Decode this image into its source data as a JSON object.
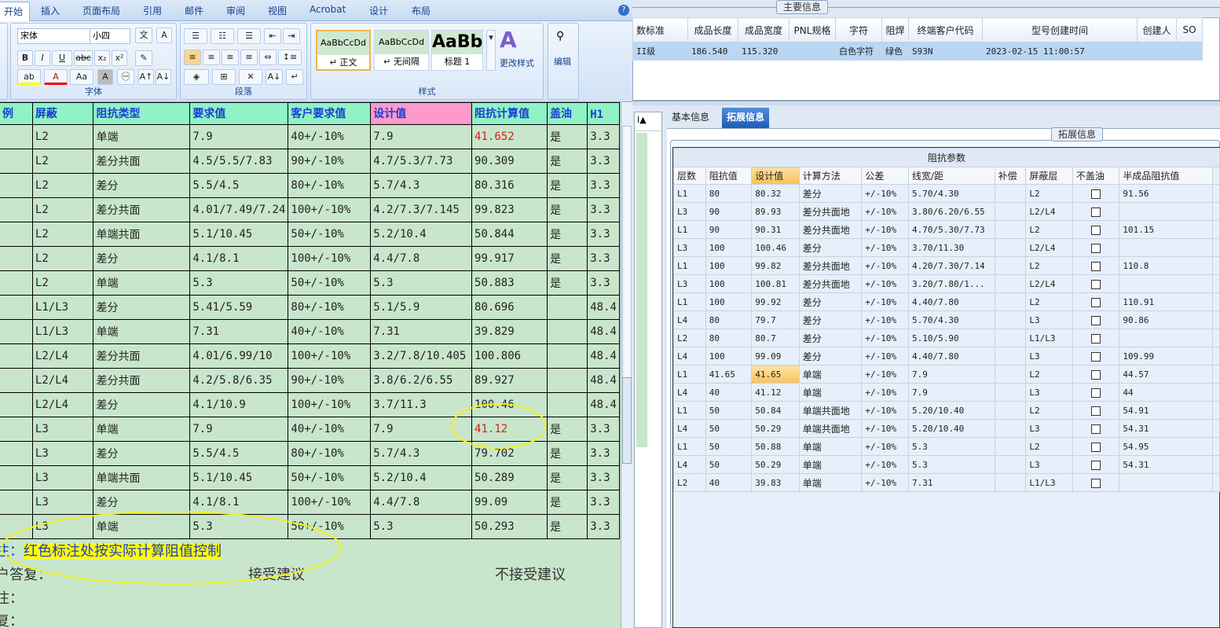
{
  "ribbon": {
    "tabs": [
      "开始",
      "插入",
      "页面布局",
      "引用",
      "邮件",
      "审阅",
      "视图",
      "Acrobat",
      "设计",
      "布局"
    ],
    "font_name": "宋体",
    "font_size": "小四",
    "groups": {
      "font": "字体",
      "paragraph": "段落",
      "styles": "样式",
      "edit": "编辑"
    },
    "styles": [
      {
        "preview": "AaBbCcDd",
        "name": "↵ 正文"
      },
      {
        "preview": "AaBbCcDd",
        "name": "↵ 无间隔"
      },
      {
        "preview": "AaBb",
        "name": "标题 1"
      }
    ],
    "change_styles": "更改样式",
    "edit_label": "编辑"
  },
  "doc": {
    "headers": [
      "例",
      "屏蔽",
      "阻抗类型",
      "要求值",
      "客户要求值",
      "设计值",
      "阻抗计算值",
      "盖油",
      "H1"
    ],
    "rows": [
      [
        "",
        "L2",
        "单端",
        "7.9",
        "40+/-10%",
        "7.9",
        "41.652",
        "是",
        "3.3"
      ],
      [
        "",
        "L2",
        "差分共面",
        "4.5/5.5/7.83",
        "90+/-10%",
        "4.7/5.3/7.73",
        "90.309",
        "是",
        "3.3"
      ],
      [
        "",
        "L2",
        "差分",
        "5.5/4.5",
        "80+/-10%",
        "5.7/4.3",
        "80.316",
        "是",
        "3.3"
      ],
      [
        "",
        "L2",
        "差分共面",
        "4.01/7.49/7.24",
        "100+/-10%",
        "4.2/7.3/7.145",
        "99.823",
        "是",
        "3.3"
      ],
      [
        "",
        "L2",
        "单端共面",
        "5.1/10.45",
        "50+/-10%",
        "5.2/10.4",
        "50.844",
        "是",
        "3.3"
      ],
      [
        "",
        "L2",
        "差分",
        "4.1/8.1",
        "100+/-10%",
        "4.4/7.8",
        "99.917",
        "是",
        "3.3"
      ],
      [
        "",
        "L2",
        "单端",
        "5.3",
        "50+/-10%",
        "5.3",
        "50.883",
        "是",
        "3.3"
      ],
      [
        "",
        "L1/L3",
        "差分",
        "5.41/5.59",
        "80+/-10%",
        "5.1/5.9",
        "80.696",
        "",
        "48.4"
      ],
      [
        "",
        "L1/L3",
        "单端",
        "7.31",
        "40+/-10%",
        "7.31",
        "39.829",
        "",
        "48.4"
      ],
      [
        "",
        "L2/L4",
        "差分共面",
        "4.01/6.99/10",
        "100+/-10%",
        "3.2/7.8/10.405",
        "100.806",
        "",
        "48.4"
      ],
      [
        "",
        "L2/L4",
        "差分共面",
        "4.2/5.8/6.35",
        "90+/-10%",
        "3.8/6.2/6.55",
        "89.927",
        "",
        "48.4"
      ],
      [
        "",
        "L2/L4",
        "差分",
        "4.1/10.9",
        "100+/-10%",
        "3.7/11.3",
        "100.46",
        "",
        "48.4"
      ],
      [
        "",
        "L3",
        "单端",
        "7.9",
        "40+/-10%",
        "7.9",
        "41.12",
        "是",
        "3.3"
      ],
      [
        "",
        "L3",
        "差分",
        "5.5/4.5",
        "80+/-10%",
        "5.7/4.3",
        "79.702",
        "是",
        "3.3"
      ],
      [
        "",
        "L3",
        "单端共面",
        "5.1/10.45",
        "50+/-10%",
        "5.2/10.4",
        "50.289",
        "是",
        "3.3"
      ],
      [
        "",
        "L3",
        "差分",
        "4.1/8.1",
        "100+/-10%",
        "4.4/7.8",
        "99.09",
        "是",
        "3.3"
      ],
      [
        "",
        "L3",
        "单端",
        "5.3",
        "50+/-10%",
        "5.3",
        "50.293",
        "是",
        "3.3"
      ]
    ],
    "red_rows": [
      0,
      12
    ],
    "note_prefix": "注：",
    "note_text": "红色标注处按实际计算阻值控制",
    "reply_label": "户答复：",
    "accept": "接受建议",
    "reject": "不接受建议",
    "line3": "注：",
    "line4": "复：",
    "highlight_color": "#ffff00",
    "red_color": "#e01a1a"
  },
  "main_info": {
    "title": "主要信息",
    "headers": [
      "数标准",
      "成品长度",
      "成品宽度",
      "PNL规格",
      "字符",
      "阻焊",
      "终端客户代码",
      "型号创建时间",
      "创建人",
      "SO"
    ],
    "row": [
      "II级",
      "186.540",
      "115.320",
      "",
      "白色字符",
      "绿色",
      "S93N",
      "2023-02-15 11:00:57",
      "",
      ""
    ]
  },
  "tabs": {
    "items": [
      "基本信息",
      "拓展信息"
    ],
    "active": 1
  },
  "ext": {
    "title": "拓展信息",
    "group_header": "阻抗参数",
    "headers": [
      "层数",
      "阻抗值",
      "设计值",
      "计算方法",
      "公差",
      "线宽/距",
      "补偿",
      "屏蔽层",
      "不盖油",
      "半成品阻抗值"
    ],
    "rows": [
      [
        "L1",
        "80",
        "80.32",
        "差分",
        "+/-10%",
        "5.70/4.30",
        "",
        "L2",
        false,
        "91.56"
      ],
      [
        "L3",
        "90",
        "89.93",
        "差分共面地",
        "+/-10%",
        "3.80/6.20/6.55",
        "",
        "L2/L4",
        false,
        ""
      ],
      [
        "L1",
        "90",
        "90.31",
        "差分共面地",
        "+/-10%",
        "4.70/5.30/7.73",
        "",
        "L2",
        false,
        "101.15"
      ],
      [
        "L3",
        "100",
        "100.46",
        "差分",
        "+/-10%",
        "3.70/11.30",
        "",
        "L2/L4",
        false,
        ""
      ],
      [
        "L1",
        "100",
        "99.82",
        "差分共面地",
        "+/-10%",
        "4.20/7.30/7.14",
        "",
        "L2",
        false,
        "110.8"
      ],
      [
        "L3",
        "100",
        "100.81",
        "差分共面地",
        "+/-10%",
        "3.20/7.80/1...",
        "",
        "L2/L4",
        false,
        ""
      ],
      [
        "L1",
        "100",
        "99.92",
        "差分",
        "+/-10%",
        "4.40/7.80",
        "",
        "L2",
        false,
        "110.91"
      ],
      [
        "L4",
        "80",
        "79.7",
        "差分",
        "+/-10%",
        "5.70/4.30",
        "",
        "L3",
        false,
        "90.86"
      ],
      [
        "L2",
        "80",
        "80.7",
        "差分",
        "+/-10%",
        "5.10/5.90",
        "",
        "L1/L3",
        false,
        ""
      ],
      [
        "L4",
        "100",
        "99.09",
        "差分",
        "+/-10%",
        "4.40/7.80",
        "",
        "L3",
        false,
        "109.99"
      ],
      [
        "L1",
        "41.65",
        "41.65",
        "单端",
        "+/-10%",
        "7.9",
        "",
        "L2",
        false,
        "44.57"
      ],
      [
        "L4",
        "40",
        "41.12",
        "单端",
        "+/-10%",
        "7.9",
        "",
        "L3",
        false,
        "44"
      ],
      [
        "L1",
        "50",
        "50.84",
        "单端共面地",
        "+/-10%",
        "5.20/10.40",
        "",
        "L2",
        false,
        "54.91"
      ],
      [
        "L4",
        "50",
        "50.29",
        "单端共面地",
        "+/-10%",
        "5.20/10.40",
        "",
        "L3",
        false,
        "54.31"
      ],
      [
        "L1",
        "50",
        "50.88",
        "单端",
        "+/-10%",
        "5.3",
        "",
        "L2",
        false,
        "54.95"
      ],
      [
        "L4",
        "50",
        "50.29",
        "单端",
        "+/-10%",
        "5.3",
        "",
        "L3",
        false,
        "54.31"
      ],
      [
        "L2",
        "40",
        "39.83",
        "单端",
        "+/-10%",
        "7.31",
        "",
        "L1/L3",
        false,
        ""
      ]
    ],
    "selected_row": 10
  }
}
